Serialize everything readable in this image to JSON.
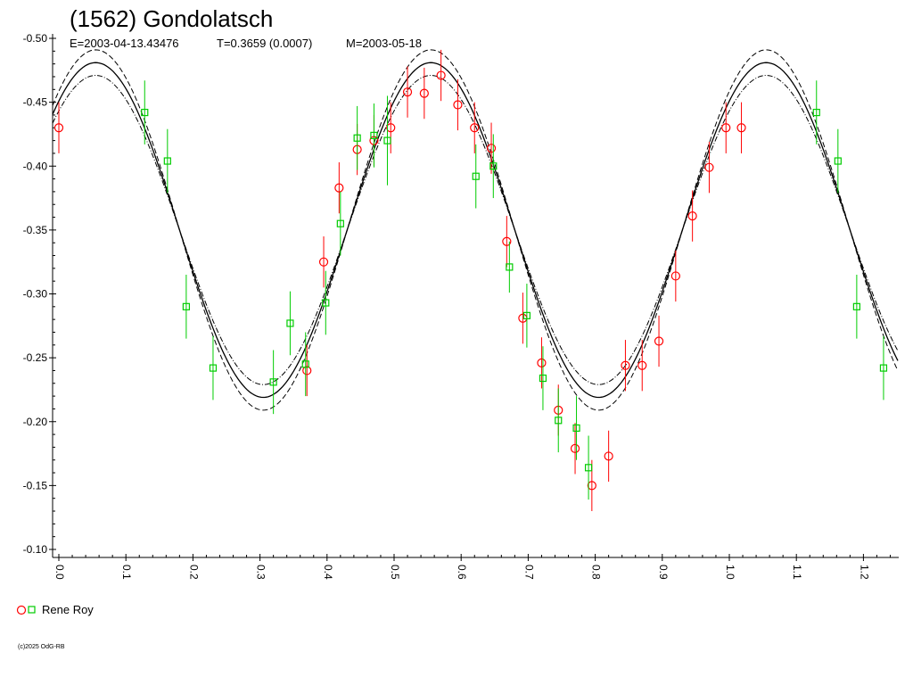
{
  "chart_data": {
    "type": "scatter",
    "title": "(1562) Gondolatsch",
    "subtitle": {
      "epoch": "E=2003-04-13.43476",
      "period": "T=0.3659 (0.0007)",
      "mid_date": "M=2003-05-18"
    },
    "xlabel": "",
    "ylabel": "",
    "xlim": [
      0.0,
      1.25
    ],
    "ylim": [
      -0.5,
      -0.1
    ],
    "y_inverted": true,
    "grid": false,
    "legend_position": "bottom-left",
    "x_ticks": [
      "0.0",
      "0.1",
      "0.2",
      "0.3",
      "0.4",
      "0.5",
      "0.6",
      "0.7",
      "0.8",
      "0.9",
      "1.0",
      "1.1",
      "1.2"
    ],
    "x_tick_values": [
      0.0,
      0.1,
      0.2,
      0.3,
      0.4,
      0.5,
      0.6,
      0.7,
      0.8,
      0.9,
      1.0,
      1.1,
      1.2
    ],
    "y_ticks": [
      "-0.50",
      "-0.45",
      "-0.40",
      "-0.35",
      "-0.30",
      "-0.25",
      "-0.20",
      "-0.15",
      "-0.10"
    ],
    "y_tick_values": [
      -0.5,
      -0.45,
      -0.4,
      -0.35,
      -0.3,
      -0.25,
      -0.2,
      -0.15,
      -0.1
    ],
    "legend": [
      {
        "name": "Rene Roy",
        "markers": [
          "circle",
          "square"
        ]
      }
    ],
    "colors": {
      "circle": "#ff0000",
      "square": "#00cc00",
      "curve": "#000000"
    },
    "fit": {
      "mean": -0.35,
      "amplitude": 0.131,
      "phase_max": 0.055,
      "band": 0.01,
      "line_styles": [
        "solid",
        "dashed",
        "dashdot"
      ]
    },
    "series": [
      {
        "marker": "circle",
        "color": "#ff0000",
        "points": [
          {
            "x": 0.0,
            "y": -0.43,
            "err": 0.02
          },
          {
            "x": 0.37,
            "y": -0.24,
            "err": 0.02
          },
          {
            "x": 0.395,
            "y": -0.325,
            "err": 0.02
          },
          {
            "x": 0.418,
            "y": -0.383,
            "err": 0.02
          },
          {
            "x": 0.445,
            "y": -0.413,
            "err": 0.02
          },
          {
            "x": 0.47,
            "y": -0.42,
            "err": 0.02
          },
          {
            "x": 0.495,
            "y": -0.43,
            "err": 0.02
          },
          {
            "x": 0.52,
            "y": -0.458,
            "err": 0.02
          },
          {
            "x": 0.545,
            "y": -0.457,
            "err": 0.02
          },
          {
            "x": 0.57,
            "y": -0.471,
            "err": 0.02
          },
          {
            "x": 0.595,
            "y": -0.448,
            "err": 0.02
          },
          {
            "x": 0.62,
            "y": -0.43,
            "err": 0.02
          },
          {
            "x": 0.645,
            "y": -0.414,
            "err": 0.02
          },
          {
            "x": 0.668,
            "y": -0.341,
            "err": 0.02
          },
          {
            "x": 0.692,
            "y": -0.281,
            "err": 0.02
          },
          {
            "x": 0.72,
            "y": -0.246,
            "err": 0.02
          },
          {
            "x": 0.745,
            "y": -0.209,
            "err": 0.02
          },
          {
            "x": 0.77,
            "y": -0.179,
            "err": 0.02
          },
          {
            "x": 0.795,
            "y": -0.15,
            "err": 0.02
          },
          {
            "x": 0.82,
            "y": -0.173,
            "err": 0.02
          },
          {
            "x": 0.845,
            "y": -0.244,
            "err": 0.02
          },
          {
            "x": 0.87,
            "y": -0.244,
            "err": 0.02
          },
          {
            "x": 0.895,
            "y": -0.263,
            "err": 0.02
          },
          {
            "x": 0.92,
            "y": -0.314,
            "err": 0.02
          },
          {
            "x": 0.945,
            "y": -0.361,
            "err": 0.02
          },
          {
            "x": 0.97,
            "y": -0.399,
            "err": 0.02
          },
          {
            "x": 0.995,
            "y": -0.43,
            "err": 0.02
          },
          {
            "x": 1.018,
            "y": -0.43,
            "err": 0.02
          }
        ]
      },
      {
        "marker": "square",
        "color": "#00cc00",
        "points": [
          {
            "x": 0.128,
            "y": -0.442,
            "err": 0.025
          },
          {
            "x": 0.162,
            "y": -0.404,
            "err": 0.025
          },
          {
            "x": 0.19,
            "y": -0.29,
            "err": 0.025
          },
          {
            "x": 0.23,
            "y": -0.242,
            "err": 0.025
          },
          {
            "x": 0.32,
            "y": -0.231,
            "err": 0.025
          },
          {
            "x": 0.345,
            "y": -0.277,
            "err": 0.025
          },
          {
            "x": 0.368,
            "y": -0.245,
            "err": 0.025
          },
          {
            "x": 0.398,
            "y": -0.293,
            "err": 0.025
          },
          {
            "x": 0.42,
            "y": -0.355,
            "err": 0.025
          },
          {
            "x": 0.445,
            "y": -0.422,
            "err": 0.025
          },
          {
            "x": 0.47,
            "y": -0.424,
            "err": 0.025
          },
          {
            "x": 0.49,
            "y": -0.42,
            "err": 0.035
          },
          {
            "x": 0.622,
            "y": -0.392,
            "err": 0.025
          },
          {
            "x": 0.648,
            "y": -0.4,
            "err": 0.025
          },
          {
            "x": 0.672,
            "y": -0.321,
            "err": 0.02
          },
          {
            "x": 0.698,
            "y": -0.283,
            "err": 0.025
          },
          {
            "x": 0.722,
            "y": -0.234,
            "err": 0.025
          },
          {
            "x": 0.745,
            "y": -0.201,
            "err": 0.025
          },
          {
            "x": 0.772,
            "y": -0.195,
            "err": 0.025
          },
          {
            "x": 0.79,
            "y": -0.164,
            "err": 0.025
          },
          {
            "x": 1.13,
            "y": -0.442,
            "err": 0.025
          },
          {
            "x": 1.162,
            "y": -0.404,
            "err": 0.025
          },
          {
            "x": 1.19,
            "y": -0.29,
            "err": 0.025
          },
          {
            "x": 1.23,
            "y": -0.242,
            "err": 0.025
          }
        ]
      }
    ]
  },
  "footer": {
    "copyright": "(c)2025 OdG-RB"
  }
}
